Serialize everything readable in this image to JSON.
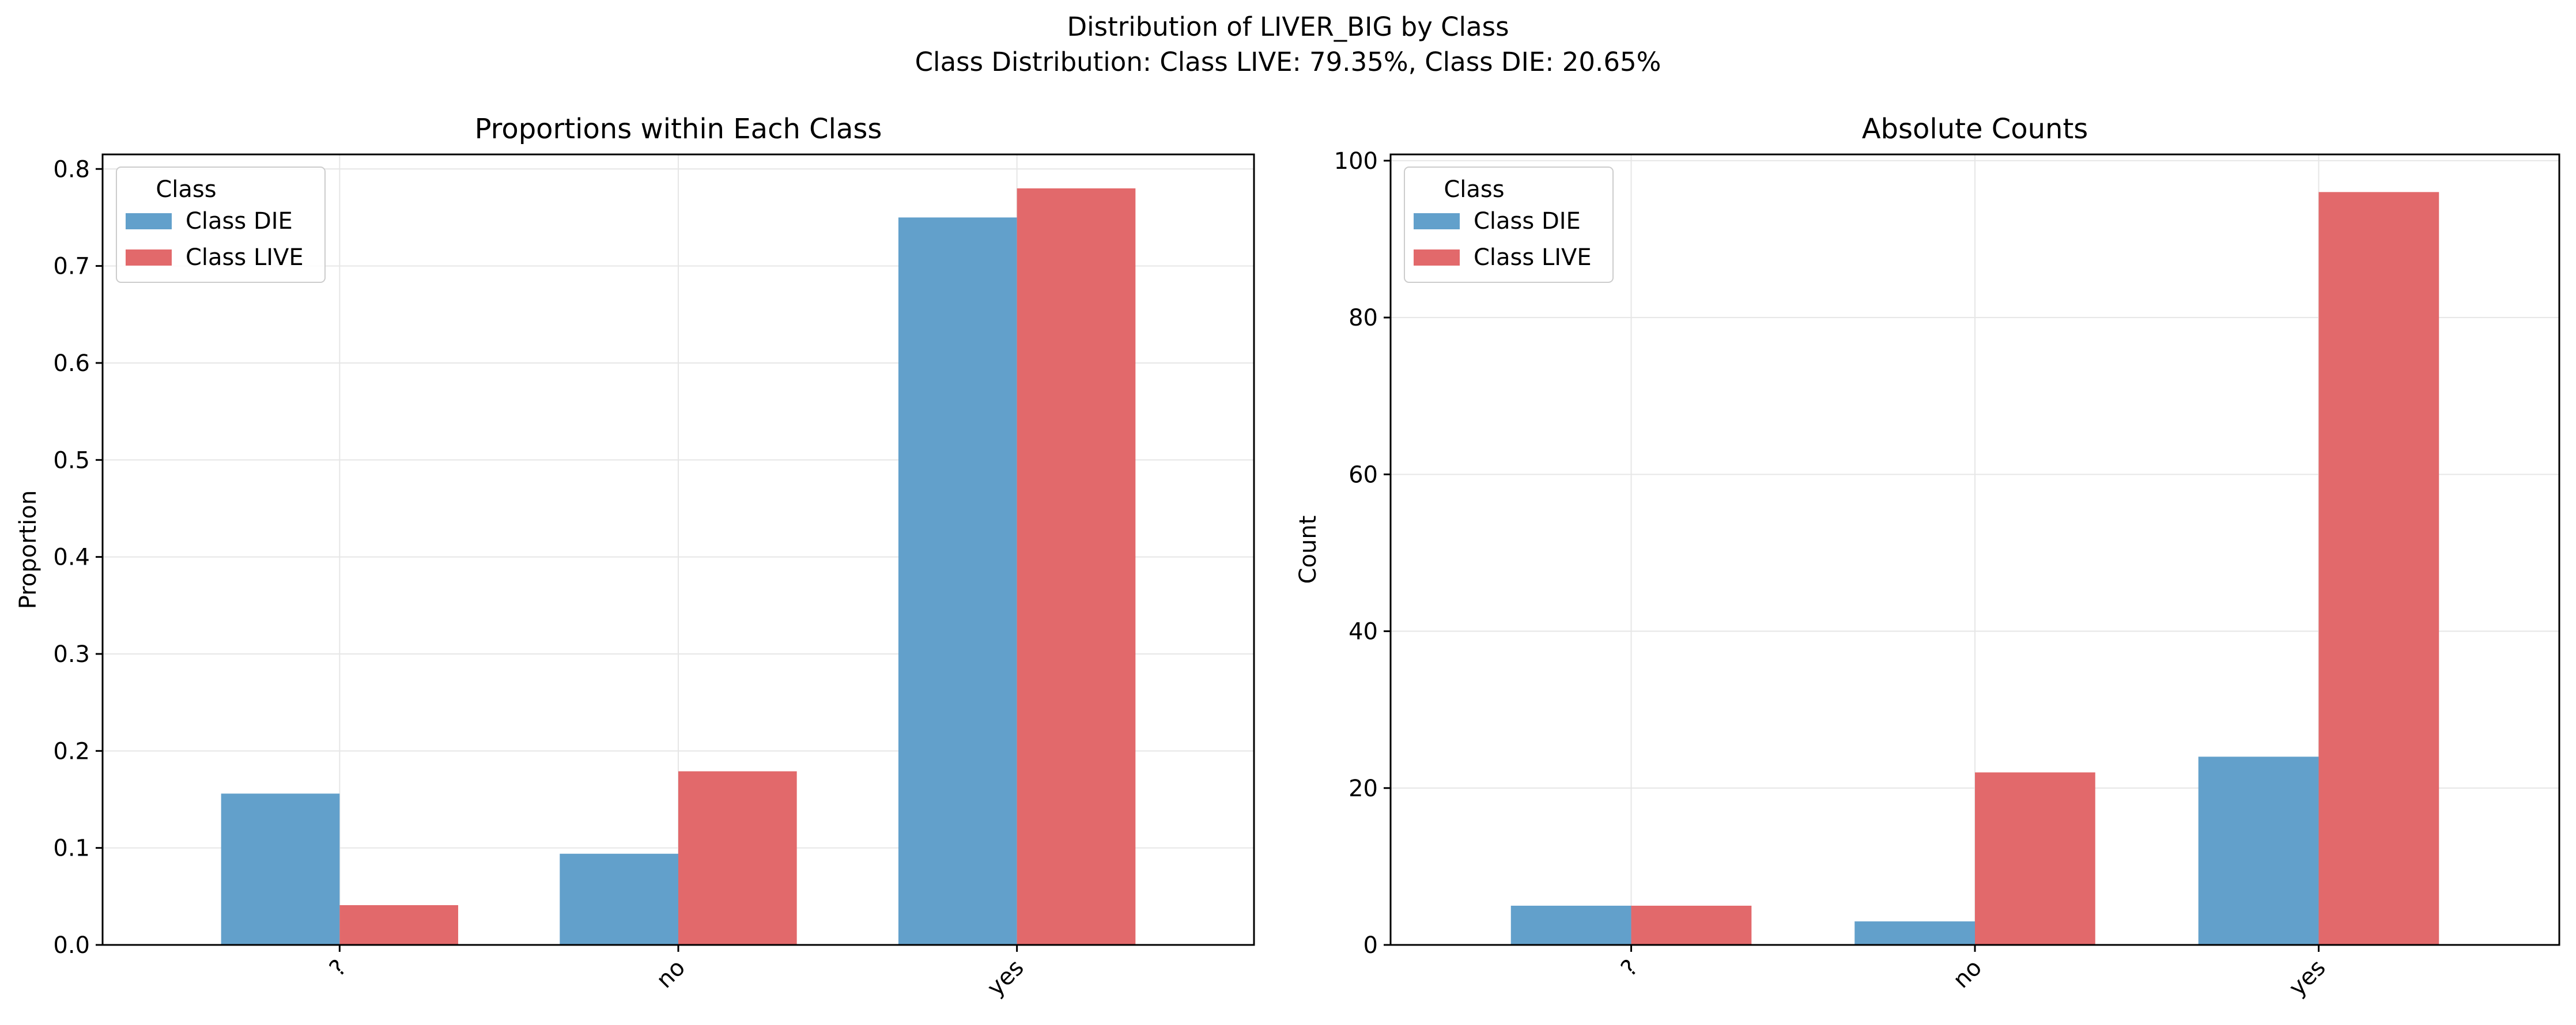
{
  "suptitle": {
    "line1": "Distribution of LIVER_BIG by Class",
    "line2": "Class Distribution: Class LIVE: 79.35%, Class DIE: 20.65%"
  },
  "colors": {
    "die": "#62a0cb",
    "live": "#e2696b",
    "grid": "#e6e6e6"
  },
  "chart_data": [
    {
      "type": "bar",
      "title": "Proportions within Each Class",
      "xlabel": "",
      "ylabel": "Proportion",
      "categories": [
        "?",
        "no",
        "yes"
      ],
      "series": [
        {
          "name": "Class DIE",
          "values": [
            0.156,
            0.094,
            0.75
          ]
        },
        {
          "name": "Class LIVE",
          "values": [
            0.041,
            0.179,
            0.78
          ]
        }
      ],
      "ylim": [
        0,
        0.815
      ],
      "yticks": [
        "0.0",
        "0.1",
        "0.2",
        "0.3",
        "0.4",
        "0.5",
        "0.6",
        "0.7",
        "0.8"
      ],
      "ytick_values": [
        0,
        0.1,
        0.2,
        0.3,
        0.4,
        0.5,
        0.6,
        0.7,
        0.8
      ],
      "grid": true,
      "legend": {
        "title": "Class",
        "placement": "upper-left"
      }
    },
    {
      "type": "bar",
      "title": "Absolute Counts",
      "xlabel": "",
      "ylabel": "Count",
      "categories": [
        "?",
        "no",
        "yes"
      ],
      "series": [
        {
          "name": "Class DIE",
          "values": [
            5,
            3,
            24
          ]
        },
        {
          "name": "Class LIVE",
          "values": [
            5,
            22,
            96
          ]
        }
      ],
      "ylim": [
        0,
        100.8
      ],
      "yticks": [
        "0",
        "20",
        "40",
        "60",
        "80",
        "100"
      ],
      "ytick_values": [
        0,
        20,
        40,
        60,
        80,
        100
      ],
      "grid": true,
      "legend": {
        "title": "Class",
        "placement": "upper-left"
      }
    }
  ]
}
